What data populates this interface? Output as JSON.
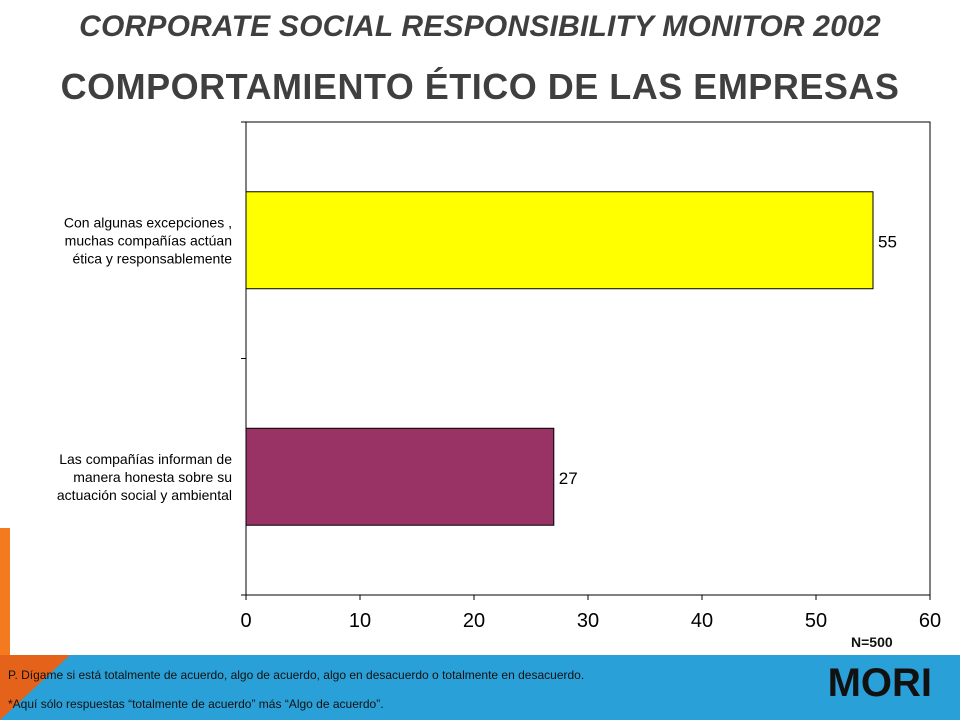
{
  "header": {
    "title": "CORPORATE SOCIAL RESPONSIBILITY MONITOR 2002",
    "subtitle": "COMPORTAMIENTO ÉTICO DE LAS EMPRESAS"
  },
  "chart_data": {
    "type": "bar",
    "orientation": "horizontal",
    "categories": [
      [
        "Con algunas excepciones ,",
        "muchas compañías actúan",
        "ética y responsablemente"
      ],
      [
        "Las compañías informan de",
        "manera honesta sobre su",
        "actuación social y ambiental"
      ]
    ],
    "values": [
      55,
      27
    ],
    "colors": [
      "#ffff00",
      "#993366"
    ],
    "xlim": [
      0,
      60
    ],
    "xticks": [
      0,
      10,
      20,
      30,
      40,
      50,
      60
    ],
    "grid": false,
    "data_labels": [
      "55",
      "27"
    ]
  },
  "sample_note": "N=500",
  "footer": {
    "question": "P. Dígame si está totalmente de acuerdo, algo de acuerdo, algo en desacuerdo o totalmente en desacuerdo.",
    "note": "*Aquí sólo respuestas “totalmente de acuerdo” más “Algo de acuerdo”.",
    "logo": "MORI"
  }
}
